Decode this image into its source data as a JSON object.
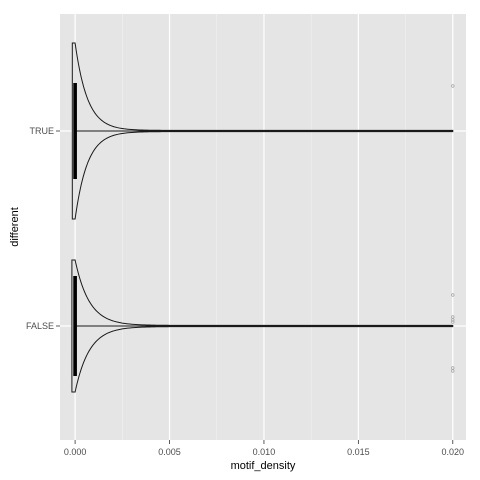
{
  "chart_data": {
    "type": "violin",
    "orientation": "horizontal",
    "xlabel": "motif_density",
    "ylabel": "different",
    "xlim": [
      -0.0008,
      0.0207
    ],
    "x_ticks": [
      {
        "value": 0.0,
        "label": "0.000"
      },
      {
        "value": 0.005,
        "label": "0.005"
      },
      {
        "value": 0.01,
        "label": "0.010"
      },
      {
        "value": 0.015,
        "label": "0.015"
      },
      {
        "value": 0.02,
        "label": "0.020"
      }
    ],
    "categories": [
      "FALSE",
      "TRUE"
    ],
    "grid": true,
    "legend": "none",
    "colors": {
      "panel_bg": "#e5e5e5",
      "grid_major": "#ffffff",
      "grid_minor": "#f2f2f2",
      "violin_outline": "#1a1a1a",
      "box_fill": "#000000",
      "outlier": "#aaaaaa"
    },
    "groups": [
      {
        "name": "TRUE",
        "max": 0.02,
        "box": {
          "q1": -7e-05,
          "median": 0.0,
          "q3": 7e-05
        },
        "outliers": [
          0.02
        ]
      },
      {
        "name": "FALSE",
        "max": 0.02,
        "box": {
          "q1": -7e-05,
          "median": 0.0,
          "q3": 7e-05
        },
        "outliers": [
          0.02,
          0.02,
          0.02,
          0.02,
          0.02,
          0.02
        ]
      }
    ]
  }
}
